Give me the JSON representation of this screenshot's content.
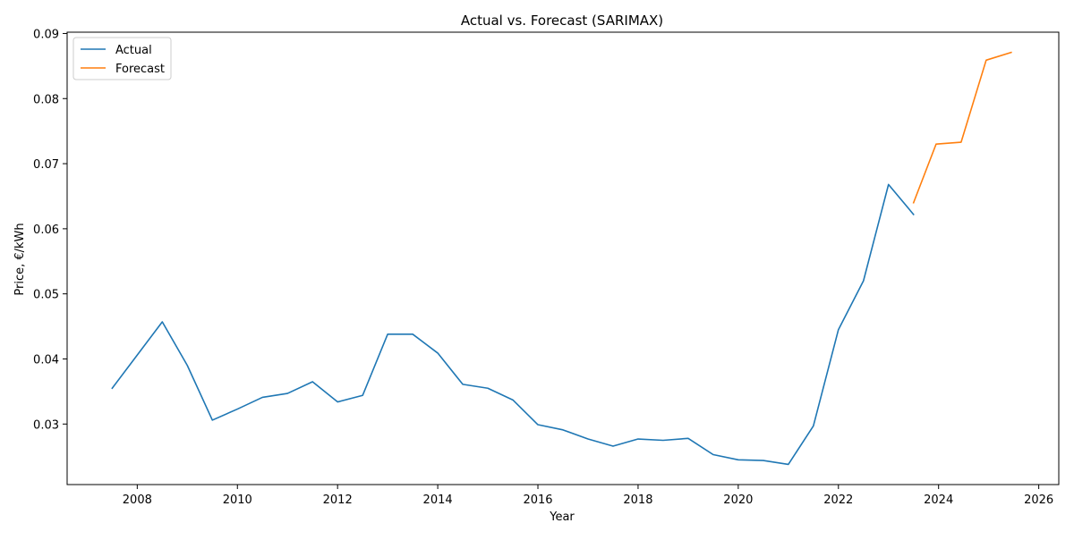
{
  "chart_data": {
    "type": "line",
    "title": "Actual vs. Forecast (SARIMAX)",
    "xlabel": "Year",
    "ylabel": "Price, €/kWh",
    "xlim": [
      2006.6,
      2026.4
    ],
    "ylim": [
      0.0207,
      0.0902
    ],
    "x_ticks": [
      2008,
      2010,
      2012,
      2014,
      2016,
      2018,
      2020,
      2022,
      2024,
      2026
    ],
    "y_ticks": [
      0.03,
      0.04,
      0.05,
      0.06,
      0.07,
      0.08,
      0.09
    ],
    "grid": false,
    "legend_position": "top-left",
    "series": [
      {
        "name": "Actual",
        "color": "#1f77b4",
        "x": [
          2007.5,
          2008.0,
          2008.5,
          2009.0,
          2009.5,
          2010.0,
          2010.5,
          2011.0,
          2011.5,
          2012.0,
          2012.5,
          2013.0,
          2013.5,
          2014.0,
          2014.5,
          2015.0,
          2015.5,
          2016.0,
          2016.5,
          2017.0,
          2017.5,
          2018.0,
          2018.5,
          2019.0,
          2019.5,
          2020.0,
          2020.5,
          2021.0,
          2021.5,
          2022.0,
          2022.5,
          2023.0,
          2023.5
        ],
        "y": [
          0.0355,
          0.0406,
          0.0457,
          0.039,
          0.0306,
          0.0323,
          0.0341,
          0.0347,
          0.0365,
          0.0334,
          0.0344,
          0.0438,
          0.0438,
          0.0409,
          0.0361,
          0.0355,
          0.0337,
          0.0299,
          0.0291,
          0.0277,
          0.0266,
          0.0277,
          0.0275,
          0.0278,
          0.0253,
          0.0245,
          0.0244,
          0.0238,
          0.0297,
          0.0445,
          0.052,
          0.0668,
          0.0622
        ]
      },
      {
        "name": "Forecast",
        "color": "#ff7f0e",
        "x": [
          2023.5,
          2023.95,
          2024.45,
          2024.95,
          2025.45
        ],
        "y": [
          0.064,
          0.073,
          0.0733,
          0.0859,
          0.0871
        ]
      }
    ]
  }
}
